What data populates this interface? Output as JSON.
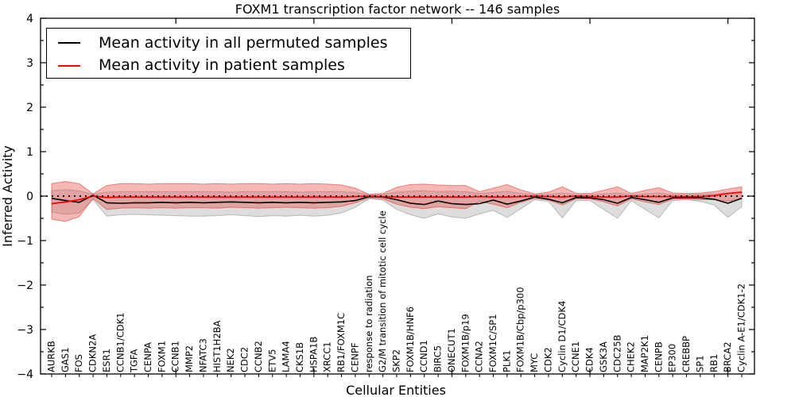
{
  "chart_data": {
    "type": "line",
    "title": "FOXM1 transcription factor network -- 146 samples",
    "xlabel": "Cellular Entities",
    "ylabel": "Inferred Activity",
    "ylim": [
      -4,
      4
    ],
    "yticks": [
      -4,
      -3,
      -2,
      -1,
      0,
      1,
      2,
      3,
      4
    ],
    "ytick_labels": [
      "−4",
      "−3",
      "−2",
      "−1",
      "0",
      "1",
      "2",
      "3",
      "4"
    ],
    "xtick_indices": [
      9,
      19,
      29,
      39,
      49
    ],
    "grid": false,
    "legend_position": "upper left",
    "zero_line": {
      "y": 0,
      "style": "dotted",
      "color": "#000000"
    },
    "categories": [
      "AURKB",
      "GAS1",
      "FOS",
      "CDKN2A",
      "ESR1",
      "CCNB1/CDK1",
      "TGFA",
      "CENPA",
      "FOXM1",
      "CCNB1",
      "MMP2",
      "NFATC3",
      "HIST1H2BA",
      "NEK2",
      "CDC2",
      "CCNB2",
      "ETV5",
      "LAMA4",
      "CKS1B",
      "HSPA1B",
      "XRCC1",
      "RB1/FOXM1C",
      "CENPF",
      "response to radiation",
      "G2/M transition of mitotic cell cycle",
      "SKP2",
      "FOXM1B/HNF6",
      "CCND1",
      "BIRC5",
      "ONECUT1",
      "FOXM1B/p19",
      "CCNA2",
      "FOXM1C/SP1",
      "PLK1",
      "FOXM1B/Cbp/p300",
      "MYC",
      "CDK2",
      "Cyclin D1/CDK4",
      "CCNE1",
      "CDK4",
      "GSK3A",
      "CDC25B",
      "CHEK2",
      "MAP2K1",
      "CENPB",
      "EP300",
      "CREBBP",
      "SP1",
      "RB1",
      "BRCA2",
      "Cyclin A-E1/CDK1-2"
    ],
    "series": [
      {
        "name": "Mean activity in all permuted samples",
        "color": "#000000",
        "values": [
          -0.05,
          -0.1,
          -0.14,
          0.02,
          -0.15,
          -0.16,
          -0.15,
          -0.15,
          -0.14,
          -0.15,
          -0.14,
          -0.15,
          -0.14,
          -0.13,
          -0.14,
          -0.15,
          -0.14,
          -0.15,
          -0.14,
          -0.15,
          -0.14,
          -0.13,
          -0.1,
          -0.01,
          -0.02,
          -0.08,
          -0.16,
          -0.19,
          -0.11,
          -0.17,
          -0.19,
          -0.17,
          -0.09,
          -0.18,
          -0.11,
          -0.02,
          -0.07,
          -0.15,
          -0.03,
          -0.04,
          -0.08,
          -0.16,
          -0.03,
          -0.08,
          -0.14,
          -0.04,
          -0.03,
          -0.04,
          -0.07,
          -0.16,
          -0.05
        ]
      },
      {
        "name": "Mean activity in patient samples",
        "color": "#ff0000",
        "values": [
          -0.17,
          -0.13,
          -0.08,
          0.0,
          -0.03,
          -0.02,
          -0.02,
          -0.02,
          -0.02,
          -0.02,
          -0.02,
          -0.02,
          -0.02,
          -0.02,
          -0.02,
          -0.02,
          -0.02,
          -0.02,
          -0.02,
          -0.02,
          -0.02,
          -0.02,
          -0.01,
          0.0,
          -0.01,
          -0.02,
          -0.02,
          -0.02,
          -0.02,
          -0.02,
          -0.02,
          -0.01,
          -0.02,
          -0.02,
          -0.01,
          0.0,
          -0.01,
          -0.02,
          0.0,
          -0.01,
          -0.02,
          -0.02,
          0.0,
          -0.01,
          -0.01,
          -0.01,
          -0.01,
          -0.01,
          0.01,
          0.06,
          0.09
        ]
      }
    ],
    "bands": [
      {
        "name": "permuted-samples-range",
        "fill": "rgba(150,150,150,0.32)",
        "stroke": "rgba(120,120,120,0.45)",
        "upper": [
          0.12,
          0.15,
          0.12,
          0.04,
          0.09,
          0.1,
          0.1,
          0.1,
          0.1,
          0.1,
          0.1,
          0.1,
          0.1,
          0.09,
          0.1,
          0.1,
          0.1,
          0.1,
          0.09,
          0.1,
          0.1,
          0.1,
          0.08,
          0.03,
          0.04,
          0.09,
          0.11,
          0.12,
          0.1,
          0.11,
          0.1,
          0.06,
          0.08,
          0.11,
          0.06,
          0.03,
          0.04,
          0.07,
          0.03,
          0.03,
          0.05,
          0.07,
          0.03,
          0.05,
          0.07,
          0.03,
          0.03,
          0.04,
          0.05,
          0.07,
          0.08
        ],
        "lower": [
          -0.36,
          -0.41,
          -0.38,
          -0.08,
          -0.45,
          -0.42,
          -0.41,
          -0.42,
          -0.43,
          -0.44,
          -0.45,
          -0.45,
          -0.44,
          -0.42,
          -0.44,
          -0.46,
          -0.44,
          -0.45,
          -0.43,
          -0.45,
          -0.43,
          -0.38,
          -0.25,
          -0.06,
          -0.09,
          -0.3,
          -0.42,
          -0.5,
          -0.4,
          -0.47,
          -0.5,
          -0.4,
          -0.32,
          -0.48,
          -0.28,
          -0.08,
          -0.12,
          -0.49,
          -0.1,
          -0.1,
          -0.3,
          -0.5,
          -0.1,
          -0.3,
          -0.49,
          -0.1,
          -0.08,
          -0.12,
          -0.2,
          -0.48,
          -0.24
        ]
      },
      {
        "name": "patient-samples-range",
        "fill": "rgba(232,85,80,0.42)",
        "stroke": "rgba(215,55,50,0.55)",
        "upper": [
          0.28,
          0.33,
          0.28,
          0.05,
          0.24,
          0.28,
          0.28,
          0.27,
          0.28,
          0.28,
          0.28,
          0.27,
          0.28,
          0.27,
          0.28,
          0.28,
          0.27,
          0.28,
          0.27,
          0.28,
          0.27,
          0.25,
          0.18,
          0.04,
          0.06,
          0.2,
          0.26,
          0.27,
          0.25,
          0.24,
          0.24,
          0.1,
          0.18,
          0.26,
          0.14,
          0.05,
          0.09,
          0.21,
          0.06,
          0.06,
          0.13,
          0.21,
          0.06,
          0.13,
          0.19,
          0.07,
          0.06,
          0.07,
          0.1,
          0.16,
          0.21
        ],
        "lower": [
          -0.52,
          -0.57,
          -0.46,
          -0.05,
          -0.3,
          -0.27,
          -0.26,
          -0.27,
          -0.26,
          -0.27,
          -0.26,
          -0.26,
          -0.27,
          -0.25,
          -0.26,
          -0.27,
          -0.26,
          -0.25,
          -0.26,
          -0.27,
          -0.26,
          -0.23,
          -0.15,
          -0.04,
          -0.06,
          -0.18,
          -0.25,
          -0.28,
          -0.24,
          -0.26,
          -0.28,
          -0.12,
          -0.18,
          -0.26,
          -0.14,
          -0.05,
          -0.09,
          -0.2,
          -0.06,
          -0.06,
          -0.13,
          -0.22,
          -0.06,
          -0.13,
          -0.19,
          -0.07,
          -0.06,
          -0.08,
          -0.08,
          -0.11,
          -0.06
        ]
      }
    ]
  },
  "legend": {
    "items": [
      {
        "label": "Mean activity in all permuted samples",
        "color": "#000000"
      },
      {
        "label": "Mean activity in patient samples",
        "color": "#ff0000"
      }
    ]
  }
}
